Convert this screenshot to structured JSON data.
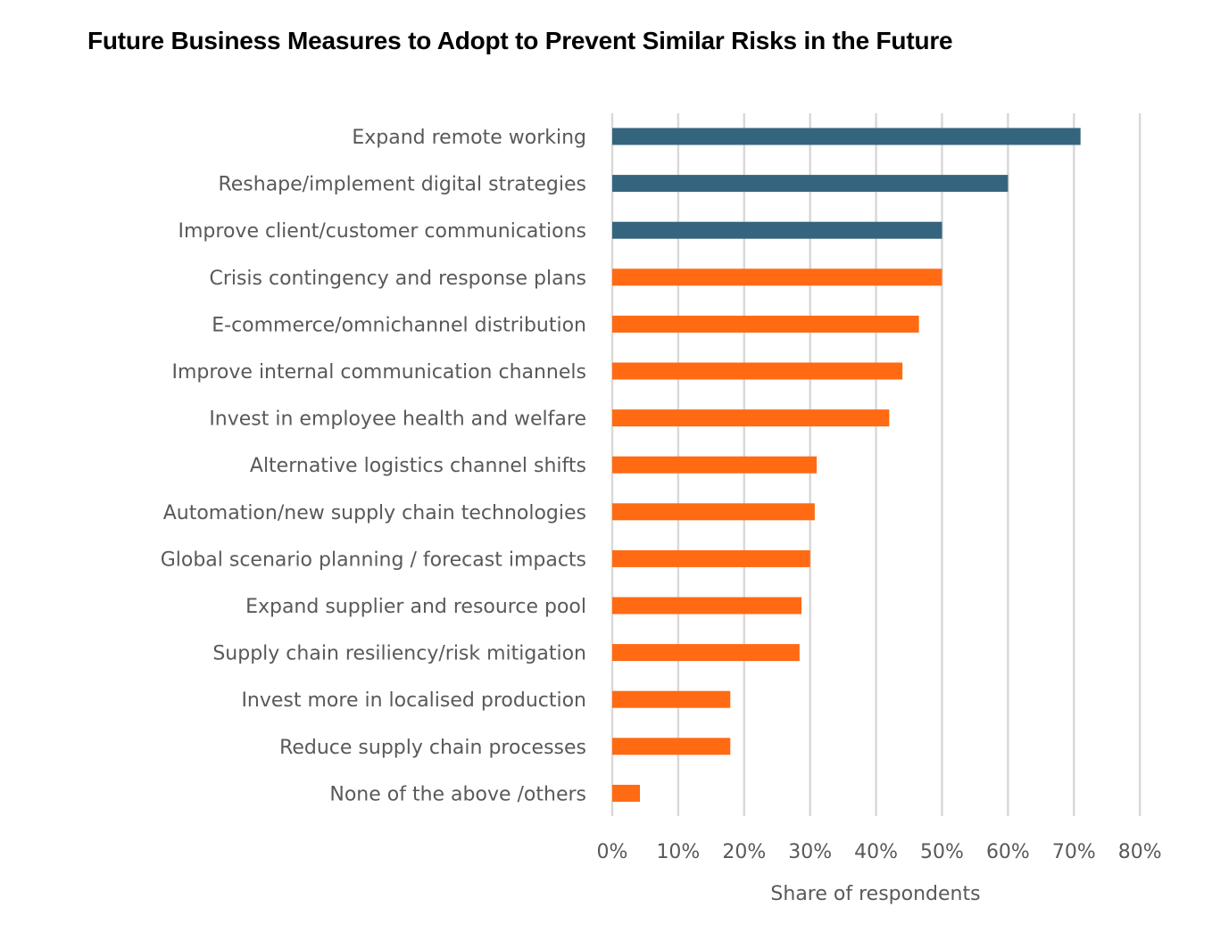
{
  "chart_data": {
    "type": "bar",
    "orientation": "horizontal",
    "title": "Future Business Measures to Adopt to Prevent Similar Risks in the Future",
    "xlabel": "Share of respondents",
    "ylabel": "",
    "xlim": [
      0,
      80
    ],
    "x_ticks": [
      "0%",
      "10%",
      "20%",
      "30%",
      "40%",
      "50%",
      "60%",
      "70%",
      "80%"
    ],
    "x_tick_values": [
      0,
      10,
      20,
      30,
      40,
      50,
      60,
      70,
      80
    ],
    "grid": true,
    "legend": "none",
    "categories": [
      "Expand remote working",
      "Reshape/implement digital strategies",
      "Improve client/customer communications",
      "Crisis contingency and response plans",
      "E-commerce/omnichannel distribution",
      "Improve internal communication channels",
      "Invest in employee health and welfare",
      "Alternative logistics channel shifts",
      "Automation/new supply chain technologies",
      "Global scenario planning / forecast impacts",
      "Expand supplier and resource pool",
      "Supply chain resiliency/risk mitigation",
      "Invest more in localised production",
      "Reduce supply chain processes",
      "None of the above /others"
    ],
    "values": [
      71,
      60,
      50,
      50,
      46.5,
      44,
      42,
      31,
      30.7,
      30,
      28.7,
      28.4,
      17.9,
      17.9,
      4.2
    ],
    "bar_colors": [
      "#35647E",
      "#35647E",
      "#35647E",
      "#FF6A13",
      "#FF6A13",
      "#FF6A13",
      "#FF6A13",
      "#FF6A13",
      "#FF6A13",
      "#FF6A13",
      "#FF6A13",
      "#FF6A13",
      "#FF6A13",
      "#FF6A13",
      "#FF6A13"
    ],
    "colors": {
      "highlight": "#35647E",
      "default": "#FF6A13",
      "grid": "#D9D9D9",
      "text": "#595959"
    }
  }
}
